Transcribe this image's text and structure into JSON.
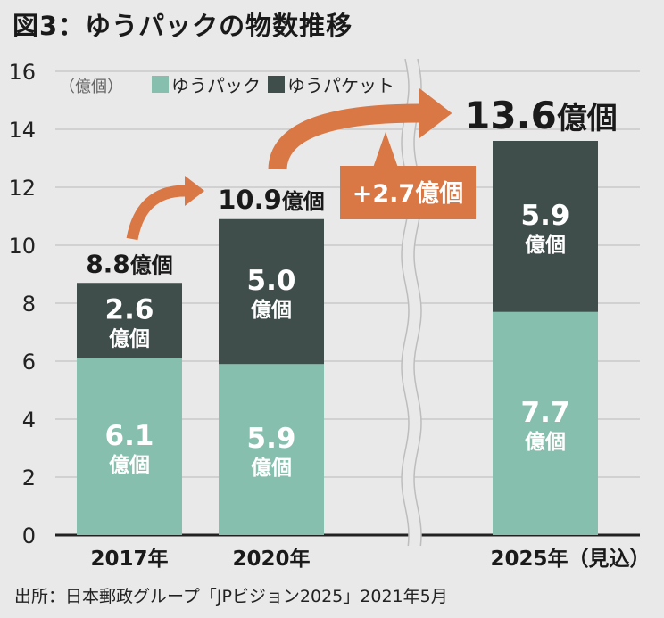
{
  "title": "図3：ゆうパックの物数推移",
  "source": "出所：日本郵政グループ「JPビジョン2025」2021年5月",
  "unit": "（億個）",
  "colors": {
    "yupack": "#86bfad",
    "yupacket": "#3f4d4b",
    "arrow": "#d97745",
    "grid": "#b9b9b9",
    "axis": "#222222"
  },
  "chart_data": {
    "type": "bar",
    "stacked": true,
    "categories": [
      "2017年",
      "2020年",
      "2025年（見込）"
    ],
    "series": [
      {
        "name": "ゆうパック",
        "values": [
          6.1,
          5.9,
          7.7
        ],
        "labels": [
          "6.1",
          "5.9",
          "7.7"
        ]
      },
      {
        "name": "ゆうパケット",
        "values": [
          2.6,
          5.0,
          5.9
        ],
        "labels": [
          "2.6",
          "5.0",
          "5.9"
        ]
      }
    ],
    "segment_unit": "億個",
    "totals": [
      {
        "number": "8.8",
        "unit": "億個"
      },
      {
        "number": "10.9",
        "unit": "億個"
      },
      {
        "number": "13.6",
        "unit": "億個"
      }
    ],
    "annotation": "+2.7億個",
    "ylim": [
      0,
      16
    ],
    "yticks": [
      0,
      2,
      4,
      6,
      8,
      10,
      12,
      14,
      16
    ],
    "grid": true,
    "legend_position": "top-left",
    "axis_break": "between 2020年 and 2025年（見込）"
  }
}
